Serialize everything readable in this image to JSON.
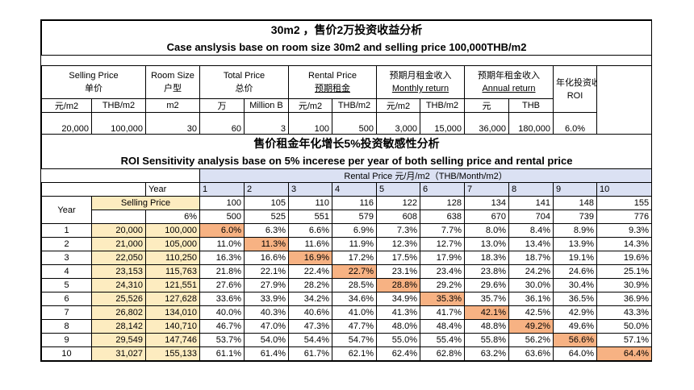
{
  "title": {
    "line1": "30m2 ，售价2万投资收益分析",
    "line2": "Case anslysis base on room size 30m2 and selling price 100,000THB/m2"
  },
  "headers": {
    "selling_price_en": "Selling Price",
    "selling_price_cn": "单价",
    "room_size_en": "Room Size",
    "room_size_cn": "户型",
    "total_price_en": "Total Price",
    "total_price_cn": "总价",
    "rental_price_en": "Rental Price",
    "rental_price_cn": "预期租金",
    "monthly_cn": "预期月租金收入",
    "monthly_en": "Monthly return",
    "annual_cn": "预期年租金收入",
    "annual_en": "Annual return",
    "roi_cn": "年化投资收益率",
    "roi_en": "ROI"
  },
  "units": [
    "元/m2",
    "THB/m2",
    "m2",
    "万",
    "Million B",
    "元/m2",
    "THB/m2",
    "元/m2",
    "THB/m2",
    "元",
    "THB"
  ],
  "values": [
    "20,000",
    "100,000",
    "30",
    "60",
    "3",
    "100",
    "500",
    "3,000",
    "15,000",
    "36,000",
    "180,000",
    "6.0%"
  ],
  "sensitivity": {
    "title_cn": "售价租金年化增长5%投资敏感性分析",
    "title_en": "ROI Sensitivity analysis base on 5% incerese per year of both selling price and rental price",
    "rental_header": "Rental Price 元/月/m2（THB/Month/m2）",
    "year_label": "Year",
    "year_row_label": "Year",
    "selling_price_label": "Selling Price",
    "growth_label": "6%",
    "cols": [
      "1",
      "2",
      "3",
      "4",
      "5",
      "6",
      "7",
      "8",
      "9",
      "10"
    ],
    "rent_cny": [
      "100",
      "105",
      "110",
      "116",
      "122",
      "128",
      "134",
      "141",
      "148",
      "155"
    ],
    "rent_thb": [
      "500",
      "525",
      "551",
      "579",
      "608",
      "638",
      "670",
      "704",
      "739",
      "776"
    ],
    "rows": [
      {
        "year": "1",
        "cny": "20,000",
        "thb": "100,000",
        "roi": [
          "6.0%",
          "6.3%",
          "6.6%",
          "6.9%",
          "7.3%",
          "7.7%",
          "8.0%",
          "8.4%",
          "8.9%",
          "9.3%"
        ]
      },
      {
        "year": "2",
        "cny": "21,000",
        "thb": "105,000",
        "roi": [
          "11.0%",
          "11.3%",
          "11.6%",
          "11.9%",
          "12.3%",
          "12.7%",
          "13.0%",
          "13.4%",
          "13.9%",
          "14.3%"
        ]
      },
      {
        "year": "3",
        "cny": "22,050",
        "thb": "110,250",
        "roi": [
          "16.3%",
          "16.6%",
          "16.9%",
          "17.2%",
          "17.5%",
          "17.9%",
          "18.3%",
          "18.7%",
          "19.1%",
          "19.6%"
        ]
      },
      {
        "year": "4",
        "cny": "23,153",
        "thb": "115,763",
        "roi": [
          "21.8%",
          "22.1%",
          "22.4%",
          "22.7%",
          "23.1%",
          "23.4%",
          "23.8%",
          "24.2%",
          "24.6%",
          "25.1%"
        ]
      },
      {
        "year": "5",
        "cny": "24,310",
        "thb": "121,551",
        "roi": [
          "27.6%",
          "27.9%",
          "28.2%",
          "28.5%",
          "28.8%",
          "29.2%",
          "29.6%",
          "30.0%",
          "30.4%",
          "30.9%"
        ]
      },
      {
        "year": "6",
        "cny": "25,526",
        "thb": "127,628",
        "roi": [
          "33.6%",
          "33.9%",
          "34.2%",
          "34.6%",
          "34.9%",
          "35.3%",
          "35.7%",
          "36.1%",
          "36.5%",
          "36.9%"
        ]
      },
      {
        "year": "7",
        "cny": "26,802",
        "thb": "134,010",
        "roi": [
          "40.0%",
          "40.3%",
          "40.6%",
          "41.0%",
          "41.3%",
          "41.7%",
          "42.1%",
          "42.5%",
          "42.9%",
          "43.3%"
        ]
      },
      {
        "year": "8",
        "cny": "28,142",
        "thb": "140,710",
        "roi": [
          "46.7%",
          "47.0%",
          "47.3%",
          "47.7%",
          "48.0%",
          "48.4%",
          "48.8%",
          "49.2%",
          "49.6%",
          "50.0%"
        ]
      },
      {
        "year": "9",
        "cny": "29,549",
        "thb": "147,746",
        "roi": [
          "53.7%",
          "54.0%",
          "54.4%",
          "54.7%",
          "55.0%",
          "55.4%",
          "55.8%",
          "56.2%",
          "56.6%",
          "57.1%"
        ]
      },
      {
        "year": "10",
        "cny": "31,027",
        "thb": "155,133",
        "roi": [
          "61.1%",
          "61.4%",
          "61.7%",
          "62.1%",
          "62.4%",
          "62.8%",
          "63.2%",
          "63.6%",
          "64.0%",
          "64.4%"
        ]
      }
    ]
  },
  "colors": {
    "blue_header": "#dbe1f3",
    "tan_price": "#fdecc0",
    "highlight": "#f7b283"
  }
}
